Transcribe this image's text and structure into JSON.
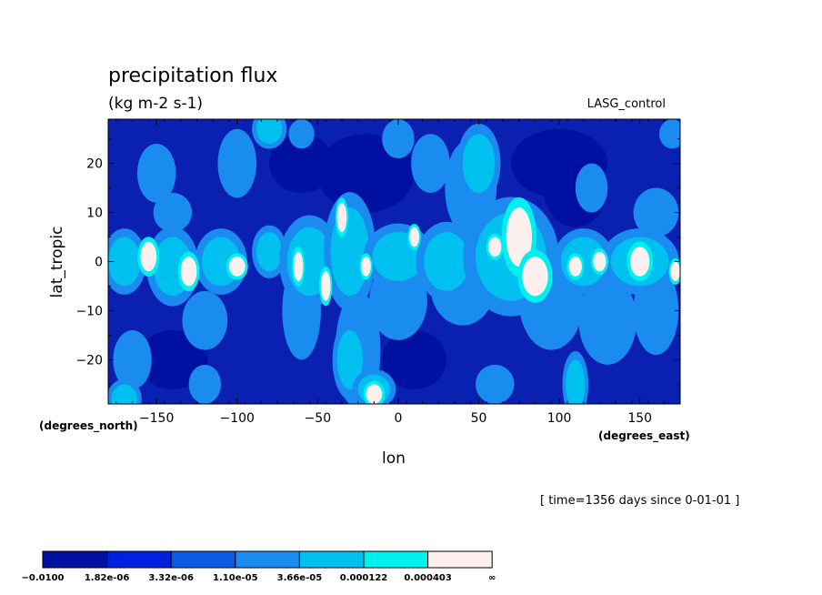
{
  "chart_data": {
    "type": "heatmap",
    "title": "precipitation flux",
    "units": "(kg m-2 s-1)",
    "experiment": "LASG_control",
    "xlabel": "lon",
    "ylabel": "lat_tropic",
    "x_unit_label": "(degrees_east)",
    "y_unit_label": "(degrees_north)",
    "time_label": "[ time=1356 days since 0-01-01 ]",
    "xlim": [
      -180,
      175
    ],
    "ylim": [
      -29,
      29
    ],
    "x_ticks": [
      -150,
      -100,
      -50,
      0,
      50,
      100,
      150
    ],
    "x_tick_labels": [
      "−150",
      "−100",
      "−50",
      "0",
      "50",
      "100",
      "150"
    ],
    "y_ticks": [
      -20,
      -10,
      0,
      10,
      20
    ],
    "y_tick_labels": [
      "−20",
      "−10",
      "0",
      "10",
      "20"
    ],
    "levels": [
      -0.01,
      1.82e-06,
      3.32e-06,
      1.1e-05,
      3.66e-05,
      0.000122,
      0.000403
    ],
    "level_labels": [
      "−0.0100",
      "1.82e-06",
      "3.32e-06",
      "1.10e-05",
      "3.66e-05",
      "0.000122",
      "0.000403",
      "∞"
    ],
    "colors": [
      "#0010a0",
      "#0020e0",
      "#0a5ae8",
      "#1a8cf0",
      "#00c0f0",
      "#00f0f0",
      "#fff0f0"
    ],
    "field_background_color": "#0a20b0",
    "white_regions": [
      {
        "lon": -155,
        "lat": 1,
        "rlon": 5,
        "rlat": 3
      },
      {
        "lon": -130,
        "lat": -2,
        "rlon": 5,
        "rlat": 3
      },
      {
        "lon": -100,
        "lat": -1,
        "rlon": 5,
        "rlat": 2
      },
      {
        "lon": -62,
        "lat": -1,
        "rlon": 3,
        "rlat": 3
      },
      {
        "lon": -35,
        "lat": 9,
        "rlon": 3,
        "rlat": 3
      },
      {
        "lon": -45,
        "lat": -5,
        "rlon": 3,
        "rlat": 3
      },
      {
        "lon": -20,
        "lat": -1,
        "rlon": 3,
        "rlat": 2
      },
      {
        "lon": 10,
        "lat": 5,
        "rlon": 3,
        "rlat": 2
      },
      {
        "lon": -15,
        "lat": -27,
        "rlon": 5,
        "rlat": 2
      },
      {
        "lon": 60,
        "lat": 3,
        "rlon": 4,
        "rlat": 2
      },
      {
        "lon": 75,
        "lat": 5,
        "rlon": 8,
        "rlat": 6
      },
      {
        "lon": 85,
        "lat": -3,
        "rlon": 8,
        "rlat": 4
      },
      {
        "lon": 110,
        "lat": -1,
        "rlon": 4,
        "rlat": 2
      },
      {
        "lon": 125,
        "lat": 0,
        "rlon": 4,
        "rlat": 2
      },
      {
        "lon": 150,
        "lat": 0,
        "rlon": 6,
        "rlat": 3
      },
      {
        "lon": 172,
        "lat": -2,
        "rlon": 3,
        "rlat": 2
      }
    ],
    "cyan_regions": [
      {
        "lon": -170,
        "lat": 0,
        "rlon": 10,
        "rlat": 5
      },
      {
        "lon": -140,
        "lat": -1,
        "rlon": 12,
        "rlat": 6
      },
      {
        "lon": -110,
        "lat": 0,
        "rlon": 12,
        "rlat": 5
      },
      {
        "lon": -80,
        "lat": 2,
        "rlon": 8,
        "rlat": 4
      },
      {
        "lon": -55,
        "lat": 0,
        "rlon": 14,
        "rlat": 7
      },
      {
        "lon": -30,
        "lat": 2,
        "rlon": 12,
        "rlat": 9
      },
      {
        "lon": 0,
        "lat": 1,
        "rlon": 16,
        "rlat": 5
      },
      {
        "lon": 30,
        "lat": 0,
        "rlon": 14,
        "rlat": 6
      },
      {
        "lon": 70,
        "lat": 1,
        "rlon": 22,
        "rlat": 9
      },
      {
        "lon": 115,
        "lat": 0,
        "rlon": 14,
        "rlat": 5
      },
      {
        "lon": 150,
        "lat": 0,
        "rlon": 18,
        "rlat": 5
      },
      {
        "lon": -30,
        "lat": -20,
        "rlon": 8,
        "rlat": 6
      },
      {
        "lon": -15,
        "lat": -26,
        "rlon": 10,
        "rlat": 3
      },
      {
        "lon": 50,
        "lat": 20,
        "rlon": 10,
        "rlat": 6
      },
      {
        "lon": -170,
        "lat": -28,
        "rlon": 8,
        "rlat": 3
      },
      {
        "lon": -80,
        "lat": 27,
        "rlon": 8,
        "rlat": 3
      },
      {
        "lon": 110,
        "lat": -25,
        "rlon": 6,
        "rlat": 5
      }
    ],
    "lightblue_regions": [
      {
        "lon": -150,
        "lat": 18,
        "rlon": 12,
        "rlat": 6
      },
      {
        "lon": -165,
        "lat": -20,
        "rlon": 12,
        "rlat": 6
      },
      {
        "lon": -120,
        "lat": -12,
        "rlon": 14,
        "rlat": 6
      },
      {
        "lon": -60,
        "lat": -10,
        "rlon": 12,
        "rlat": 10
      },
      {
        "lon": -25,
        "lat": -18,
        "rlon": 14,
        "rlat": 12
      },
      {
        "lon": 0,
        "lat": -8,
        "rlon": 18,
        "rlat": 8
      },
      {
        "lon": 40,
        "lat": -5,
        "rlon": 20,
        "rlat": 8
      },
      {
        "lon": 95,
        "lat": -8,
        "rlon": 20,
        "rlat": 10
      },
      {
        "lon": 130,
        "lat": -12,
        "rlon": 18,
        "rlat": 9
      },
      {
        "lon": 160,
        "lat": -10,
        "rlon": 14,
        "rlat": 9
      },
      {
        "lon": 45,
        "lat": 15,
        "rlon": 16,
        "rlat": 10
      },
      {
        "lon": 20,
        "lat": 20,
        "rlon": 12,
        "rlat": 6
      },
      {
        "lon": -100,
        "lat": 20,
        "rlon": 12,
        "rlat": 7
      },
      {
        "lon": 120,
        "lat": 15,
        "rlon": 10,
        "rlat": 5
      },
      {
        "lon": 170,
        "lat": 26,
        "rlon": 8,
        "rlat": 3
      },
      {
        "lon": -60,
        "lat": 26,
        "rlon": 8,
        "rlat": 3
      },
      {
        "lon": 160,
        "lat": 10,
        "rlon": 14,
        "rlat": 5
      },
      {
        "lon": -140,
        "lat": 10,
        "rlon": 12,
        "rlat": 4
      },
      {
        "lon": 0,
        "lat": 25,
        "rlon": 10,
        "rlat": 4
      },
      {
        "lon": -120,
        "lat": -25,
        "rlon": 10,
        "rlat": 4
      },
      {
        "lon": 60,
        "lat": -25,
        "rlon": 12,
        "rlat": 4
      }
    ],
    "darkblue_patches": [
      {
        "lon": -20,
        "lat": 18,
        "rlon": 30,
        "rlat": 8
      },
      {
        "lon": 100,
        "lat": 20,
        "rlon": 30,
        "rlat": 7
      },
      {
        "lon": 110,
        "lat": 15,
        "rlon": 20,
        "rlat": 8
      },
      {
        "lon": -140,
        "lat": -20,
        "rlon": 22,
        "rlat": 6
      },
      {
        "lon": 10,
        "lat": -20,
        "rlon": 20,
        "rlat": 6
      },
      {
        "lon": -60,
        "lat": 20,
        "rlon": 20,
        "rlat": 6
      }
    ]
  }
}
